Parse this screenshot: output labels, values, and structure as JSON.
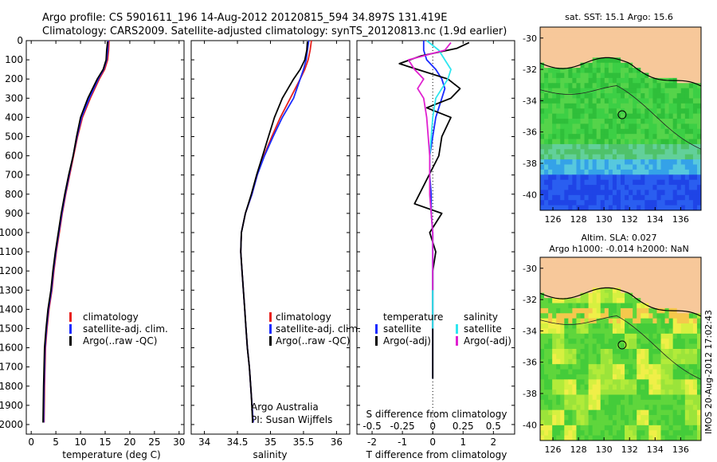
{
  "header": {
    "line1": "Argo profile: CS 5901611_196 14-Aug-2012 20120815_594 34.897S 131.419E",
    "line2": "Climatology: CARS2009. Satellite-adjusted climatology: synTS_20120813.nc (1.9d earlier)"
  },
  "side_label": "IMOS 20-Aug-2012 17:02:43",
  "colors": {
    "climatology": "#e8211e",
    "satellite": "#1a2bff",
    "argo": "#000000",
    "sat_salinity": "#2ee6ef",
    "argo_salinity": "#e020d0",
    "land": "#f7c89a"
  },
  "chart_data": [
    {
      "type": "line",
      "id": "temperature",
      "xlabel": "temperature (deg C)",
      "ylabel": "",
      "xlim": [
        -1,
        31
      ],
      "ylim": [
        2050,
        0
      ],
      "xticks": [
        0,
        5,
        10,
        15,
        20,
        25,
        30
      ],
      "yticks": [
        0,
        100,
        200,
        300,
        400,
        500,
        600,
        700,
        800,
        900,
        1000,
        1100,
        1200,
        1300,
        1400,
        1500,
        1600,
        1700,
        1800,
        1900,
        2000
      ],
      "legend": [
        "climatology",
        "satellite-adj. clim.",
        "Argo(..raw -QC)"
      ],
      "series": [
        {
          "name": "climatology",
          "color": "#e8211e",
          "x": [
            15.8,
            15.7,
            15.5,
            14.9,
            13.8,
            12.0,
            10.4,
            9.4,
            8.6,
            7.8,
            7.0,
            6.3,
            5.7,
            5.1,
            4.6,
            4.2,
            3.6,
            3.2,
            2.9,
            2.7,
            2.6
          ],
          "y": [
            0,
            50,
            100,
            150,
            200,
            300,
            400,
            500,
            600,
            700,
            800,
            900,
            1000,
            1100,
            1200,
            1300,
            1400,
            1500,
            1600,
            1800,
            1990
          ]
        },
        {
          "name": "satellite-adj. clim.",
          "color": "#1a2bff",
          "x": [
            15.6,
            15.5,
            15.3,
            14.7,
            13.6,
            11.8,
            10.2,
            9.3,
            8.5,
            7.7,
            6.9,
            6.2,
            5.6,
            5.0,
            4.5,
            4.1,
            3.5,
            3.1,
            2.8,
            2.6,
            2.5
          ],
          "y": [
            0,
            50,
            100,
            150,
            200,
            300,
            400,
            500,
            600,
            700,
            800,
            900,
            1000,
            1100,
            1200,
            1300,
            1400,
            1500,
            1600,
            1800,
            1990
          ]
        },
        {
          "name": "Argo(..raw -QC)",
          "color": "#000000",
          "x": [
            15.5,
            15.3,
            15.2,
            14.6,
            13.4,
            11.5,
            10.0,
            9.2,
            8.5,
            7.6,
            6.8,
            6.1,
            5.5,
            4.9,
            4.4,
            4.0,
            3.4,
            3.0,
            2.7,
            2.5,
            2.4
          ],
          "y": [
            5,
            50,
            100,
            150,
            200,
            300,
            400,
            500,
            600,
            700,
            800,
            900,
            1000,
            1100,
            1200,
            1300,
            1400,
            1500,
            1600,
            1800,
            1990
          ]
        }
      ]
    },
    {
      "type": "line",
      "id": "salinity",
      "xlabel": "salinity",
      "xlim": [
        33.8,
        36.2
      ],
      "ylim": [
        2050,
        0
      ],
      "xticks": [
        34,
        34.5,
        35,
        35.5,
        36
      ],
      "legend": [
        "climatology",
        "satellite-adj. clim.",
        "Argo(..raw -QC)"
      ],
      "annotation": [
        "Argo Australia",
        "PI: Susan Wijffels"
      ],
      "series": [
        {
          "name": "climatology",
          "color": "#e8211e",
          "x": [
            35.62,
            35.6,
            35.57,
            35.52,
            35.45,
            35.3,
            35.15,
            35.02,
            34.9,
            34.8,
            34.72,
            34.62,
            34.56,
            34.55,
            34.57,
            34.59,
            34.61,
            34.63,
            34.65,
            34.68,
            34.71,
            34.74
          ],
          "y": [
            0,
            50,
            100,
            150,
            200,
            300,
            400,
            500,
            600,
            700,
            800,
            900,
            1000,
            1100,
            1200,
            1300,
            1400,
            1500,
            1600,
            1700,
            1850,
            1990
          ]
        },
        {
          "name": "satellite-adj. clim.",
          "color": "#1a2bff",
          "x": [
            35.58,
            35.56,
            35.54,
            35.5,
            35.45,
            35.35,
            35.18,
            35.04,
            34.91,
            34.8,
            34.72,
            34.62,
            34.56,
            34.55,
            34.57,
            34.59,
            34.61,
            34.63,
            34.65,
            34.68,
            34.71,
            34.74
          ],
          "y": [
            0,
            50,
            100,
            150,
            200,
            300,
            400,
            500,
            600,
            700,
            800,
            900,
            1000,
            1100,
            1200,
            1300,
            1400,
            1500,
            1600,
            1700,
            1850,
            1990
          ]
        },
        {
          "name": "Argo(..raw -QC)",
          "color": "#000000",
          "x": [
            35.56,
            35.55,
            35.52,
            35.45,
            35.35,
            35.18,
            35.06,
            34.97,
            34.88,
            34.79,
            34.71,
            34.62,
            34.56,
            34.55,
            34.57,
            34.59,
            34.61,
            34.63,
            34.65,
            34.68,
            34.71,
            34.73
          ],
          "y": [
            5,
            50,
            100,
            150,
            200,
            300,
            400,
            500,
            600,
            700,
            800,
            900,
            1000,
            1100,
            1200,
            1300,
            1400,
            1500,
            1600,
            1700,
            1850,
            1990
          ]
        }
      ]
    },
    {
      "type": "line",
      "id": "difference",
      "xlabel": "T difference from climatology",
      "top_axis_label": "S difference from climatology",
      "xlim": [
        -2.5,
        2.7
      ],
      "ylim": [
        2050,
        0
      ],
      "xticks": [
        -2,
        -1,
        0,
        1,
        2
      ],
      "top_ticks": [
        "-0.5",
        "-0.25",
        "0",
        "0.25",
        "0.5"
      ],
      "legend_temperature": [
        "temperature",
        "satellite",
        "Argo(-adj)"
      ],
      "legend_salinity": [
        "salinity",
        "satellite",
        "Argo(-adj)"
      ],
      "series": [
        {
          "name": "satellite",
          "group": "temperature",
          "color": "#1a2bff",
          "x": [
            -0.3,
            -0.3,
            -0.2,
            0.1,
            0.3,
            0.4,
            0.3,
            0.2,
            0.1,
            0.0,
            -0.1,
            -0.1,
            -0.05,
            -0.05,
            0,
            0,
            0,
            0,
            0,
            0,
            0
          ],
          "y": [
            0,
            50,
            100,
            150,
            200,
            250,
            300,
            350,
            400,
            500,
            600,
            700,
            800,
            900,
            1000,
            1200,
            1400,
            1500,
            1600,
            1700,
            1760
          ]
        },
        {
          "name": "Argo(-adj)",
          "group": "temperature",
          "color": "#000000",
          "x": [
            1.2,
            0.8,
            -0.4,
            -1.1,
            -0.3,
            0.5,
            0.9,
            0.6,
            -0.2,
            0.6,
            0.3,
            0.2,
            -0.6,
            0.3,
            -0.1,
            0.1,
            0,
            0,
            0,
            0,
            0
          ],
          "y": [
            10,
            40,
            80,
            120,
            160,
            200,
            250,
            300,
            350,
            400,
            500,
            600,
            850,
            900,
            1000,
            1100,
            1200,
            1400,
            1500,
            1600,
            1760
          ]
        },
        {
          "name": "satellite",
          "group": "salinity",
          "color": "#2ee6ef",
          "x": [
            -0.2,
            0.2,
            0.4,
            0.6,
            0.5,
            0.3,
            0.1,
            0.0,
            -0.05,
            -0.1,
            -0.1,
            0,
            0,
            0
          ],
          "y": [
            0,
            50,
            100,
            150,
            200,
            250,
            300,
            400,
            500,
            600,
            800,
            1000,
            1300,
            1500
          ]
        },
        {
          "name": "Argo(-adj)",
          "group": "salinity",
          "color": "#e020d0",
          "x": [
            0.6,
            0.4,
            -0.8,
            -0.6,
            -0.3,
            -0.5,
            -0.3,
            -0.2,
            -0.15,
            -0.1,
            -0.1,
            0,
            0
          ],
          "y": [
            10,
            50,
            100,
            150,
            200,
            250,
            300,
            400,
            500,
            600,
            800,
            1000,
            1300
          ]
        }
      ]
    },
    {
      "type": "heatmap",
      "id": "sst-map",
      "title": "sat. SST: 15.1 Argo: 15.6",
      "xticks": [
        "126",
        "128",
        "130",
        "132",
        "134",
        "136"
      ],
      "yticks": [
        "-30",
        "-32",
        "-34",
        "-36",
        "-38",
        "-40"
      ],
      "float_position": {
        "lon": 131.419,
        "lat": -34.897
      }
    },
    {
      "type": "heatmap",
      "id": "sla-map",
      "title_line1": "Altim. SLA: 0.027",
      "title_line2": "Argo h1000: -0.014 h2000: NaN",
      "xticks": [
        "126",
        "128",
        "130",
        "132",
        "134",
        "136"
      ],
      "yticks": [
        "-30",
        "-32",
        "-34",
        "-36",
        "-38",
        "-40"
      ],
      "float_position": {
        "lon": 131.419,
        "lat": -34.897
      }
    }
  ]
}
